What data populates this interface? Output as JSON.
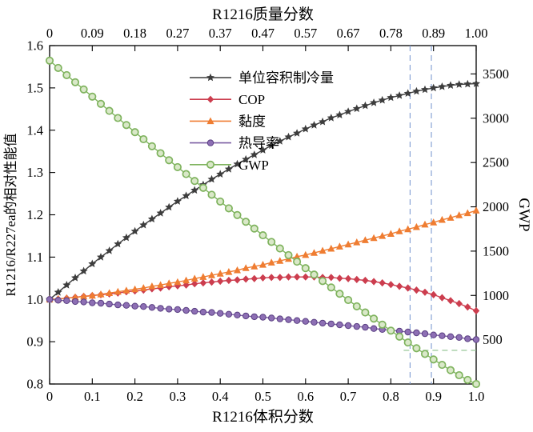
{
  "chart_data": {
    "type": "line",
    "title": "",
    "x_start": 0,
    "x_step": 0.02,
    "axes": {
      "top": {
        "label": "R1216质量分数",
        "tick_labels": [
          "0",
          "0.09",
          "0.18",
          "0.27",
          "0.37",
          "0.47",
          "0.57",
          "0.67",
          "0.78",
          "0.89",
          "1.00"
        ],
        "tick_positions": [
          0,
          0.1,
          0.2,
          0.3,
          0.4,
          0.5,
          0.6,
          0.7,
          0.8,
          0.9,
          1.0
        ]
      },
      "bottom": {
        "label": "R1216体积分数",
        "tick_labels": [
          "0",
          "0.1",
          "0.2",
          "0.3",
          "0.4",
          "0.5",
          "0.6",
          "0.7",
          "0.8",
          "0.9",
          "1.0"
        ],
        "tick_positions": [
          0,
          0.1,
          0.2,
          0.3,
          0.4,
          0.5,
          0.6,
          0.7,
          0.8,
          0.9,
          1.0
        ],
        "range": [
          0,
          1
        ]
      },
      "left": {
        "label": "R1216/R227ea的相对性能值",
        "tick_labels": [
          "0.8",
          "0.9",
          "1.0",
          "1.1",
          "1.2",
          "1.3",
          "1.4",
          "1.5",
          "1.6"
        ],
        "tick_values": [
          0.8,
          0.9,
          1.0,
          1.1,
          1.2,
          1.3,
          1.4,
          1.5,
          1.6
        ],
        "range": [
          0.8,
          1.6
        ]
      },
      "right": {
        "label": "GWP",
        "tick_labels": [
          "500",
          "1000",
          "1500",
          "2000",
          "2500",
          "3000",
          "3500"
        ],
        "tick_values": [
          500,
          1000,
          1500,
          2000,
          2500,
          3000,
          3500
        ],
        "range": [
          0,
          3820
        ]
      }
    },
    "series": [
      {
        "name": "单位容积制冷量",
        "axis": "left",
        "marker": "star",
        "color": "#3d3d3d",
        "values": [
          1.0,
          1.017,
          1.034,
          1.051,
          1.067,
          1.084,
          1.1,
          1.115,
          1.131,
          1.146,
          1.161,
          1.176,
          1.19,
          1.204,
          1.218,
          1.232,
          1.245,
          1.258,
          1.271,
          1.284,
          1.296,
          1.308,
          1.32,
          1.331,
          1.342,
          1.353,
          1.364,
          1.374,
          1.384,
          1.393,
          1.403,
          1.412,
          1.42,
          1.429,
          1.436,
          1.444,
          1.451,
          1.458,
          1.465,
          1.471,
          1.477,
          1.482,
          1.487,
          1.492,
          1.496,
          1.5,
          1.503,
          1.506,
          1.508,
          1.509,
          1.51
        ]
      },
      {
        "name": "COP",
        "axis": "left",
        "marker": "diamond",
        "color": "#cc3d4e",
        "values": [
          1.0,
          1.001,
          1.003,
          1.005,
          1.007,
          1.009,
          1.011,
          1.013,
          1.015,
          1.018,
          1.02,
          1.022,
          1.025,
          1.027,
          1.03,
          1.032,
          1.034,
          1.037,
          1.039,
          1.041,
          1.043,
          1.045,
          1.046,
          1.048,
          1.049,
          1.051,
          1.052,
          1.052,
          1.053,
          1.053,
          1.053,
          1.053,
          1.052,
          1.052,
          1.05,
          1.049,
          1.047,
          1.045,
          1.042,
          1.039,
          1.035,
          1.031,
          1.027,
          1.022,
          1.017,
          1.011,
          1.004,
          0.997,
          0.99,
          0.982,
          0.973
        ]
      },
      {
        "name": "黏度",
        "axis": "left",
        "marker": "triangle",
        "color": "#ef7d32",
        "values": [
          1.0,
          1.001,
          1.003,
          1.005,
          1.007,
          1.009,
          1.012,
          1.015,
          1.018,
          1.021,
          1.024,
          1.027,
          1.031,
          1.034,
          1.038,
          1.041,
          1.045,
          1.049,
          1.053,
          1.057,
          1.061,
          1.065,
          1.069,
          1.074,
          1.078,
          1.082,
          1.087,
          1.091,
          1.096,
          1.101,
          1.105,
          1.11,
          1.115,
          1.12,
          1.125,
          1.13,
          1.135,
          1.14,
          1.145,
          1.15,
          1.155,
          1.161,
          1.166,
          1.171,
          1.177,
          1.182,
          1.188,
          1.193,
          1.199,
          1.204,
          1.21
        ]
      },
      {
        "name": "热导率",
        "axis": "left",
        "marker": "circle",
        "color": "#7b5ea3",
        "fill": "#8d6fb4",
        "edge": "#5a3f82",
        "values": [
          1.0,
          0.998,
          0.997,
          0.995,
          0.994,
          0.992,
          0.991,
          0.989,
          0.987,
          0.986,
          0.984,
          0.983,
          0.981,
          0.979,
          0.977,
          0.976,
          0.974,
          0.972,
          0.97,
          0.969,
          0.967,
          0.965,
          0.963,
          0.961,
          0.959,
          0.958,
          0.956,
          0.954,
          0.952,
          0.95,
          0.948,
          0.946,
          0.944,
          0.942,
          0.94,
          0.938,
          0.936,
          0.934,
          0.931,
          0.929,
          0.927,
          0.925,
          0.923,
          0.921,
          0.919,
          0.916,
          0.914,
          0.912,
          0.91,
          0.907,
          0.905
        ]
      },
      {
        "name": "GWP",
        "axis": "right",
        "marker": "circle-open",
        "color": "#7fb35e",
        "fill": "#d9e8c8",
        "values": [
          3650,
          3568,
          3487,
          3406,
          3325,
          3244,
          3163,
          3083,
          3003,
          2923,
          2843,
          2763,
          2684,
          2605,
          2526,
          2448,
          2370,
          2292,
          2214,
          2137,
          2060,
          1983,
          1907,
          1831,
          1755,
          1679,
          1604,
          1530,
          1455,
          1381,
          1308,
          1235,
          1162,
          1090,
          1019,
          948,
          877,
          807,
          738,
          670,
          602,
          535,
          469,
          404,
          340,
          277,
          216,
          156,
          99,
          46,
          0
        ]
      }
    ],
    "annotations": {
      "vlines": {
        "color": "#7d9bd2",
        "xs": [
          0.845,
          0.895
        ]
      },
      "hline": {
        "color": "#8cc08c",
        "y_right": 380,
        "x_from": 0.83,
        "x_to": 1.0
      }
    }
  }
}
